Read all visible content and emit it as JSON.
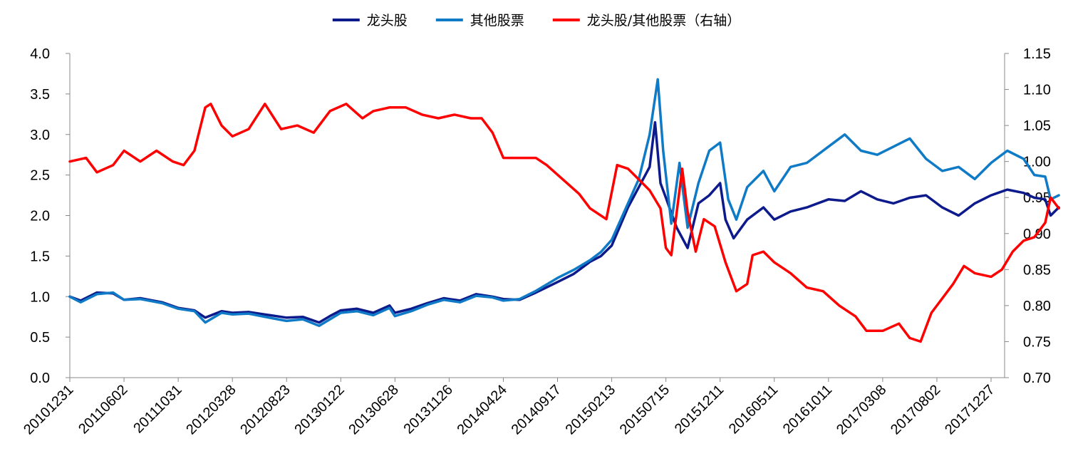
{
  "chart_data": {
    "type": "line",
    "legend_position": "top-center",
    "grid": false,
    "x_tick_labels": [
      "20101231",
      "20110602",
      "20111031",
      "20120328",
      "20120823",
      "20130122",
      "20130628",
      "20131126",
      "20140424",
      "20140917",
      "20150213",
      "20150715",
      "20151211",
      "20160511",
      "20161011",
      "20170308",
      "20170802",
      "20171227"
    ],
    "y_left": {
      "min": 0.0,
      "max": 4.0,
      "step": 0.5,
      "tick_labels": [
        "0.0",
        "0.5",
        "1.0",
        "1.5",
        "2.0",
        "2.5",
        "3.0",
        "3.5",
        "4.0"
      ]
    },
    "y_right": {
      "min": 0.7,
      "max": 1.15,
      "step": 0.05,
      "tick_labels": [
        "0.70",
        "0.75",
        "0.80",
        "0.85",
        "0.90",
        "0.95",
        "1.00",
        "1.05",
        "1.10",
        "1.15"
      ]
    },
    "series": [
      {
        "name": "龙头股",
        "axis": "left",
        "color": "#0d1a8c",
        "points": [
          [
            0,
            1.0
          ],
          [
            0.2,
            0.95
          ],
          [
            0.5,
            1.05
          ],
          [
            0.8,
            1.04
          ],
          [
            1.0,
            0.96
          ],
          [
            1.3,
            0.98
          ],
          [
            1.7,
            0.93
          ],
          [
            2.0,
            0.86
          ],
          [
            2.3,
            0.83
          ],
          [
            2.5,
            0.74
          ],
          [
            2.8,
            0.82
          ],
          [
            3.0,
            0.8
          ],
          [
            3.3,
            0.81
          ],
          [
            3.6,
            0.78
          ],
          [
            4.0,
            0.74
          ],
          [
            4.3,
            0.75
          ],
          [
            4.6,
            0.68
          ],
          [
            4.8,
            0.76
          ],
          [
            5.0,
            0.83
          ],
          [
            5.3,
            0.85
          ],
          [
            5.6,
            0.8
          ],
          [
            5.9,
            0.89
          ],
          [
            6.0,
            0.8
          ],
          [
            6.3,
            0.85
          ],
          [
            6.6,
            0.92
          ],
          [
            6.9,
            0.98
          ],
          [
            7.2,
            0.95
          ],
          [
            7.5,
            1.03
          ],
          [
            7.8,
            1.0
          ],
          [
            8.0,
            0.97
          ],
          [
            8.3,
            0.96
          ],
          [
            8.6,
            1.05
          ],
          [
            9.0,
            1.18
          ],
          [
            9.3,
            1.28
          ],
          [
            9.6,
            1.43
          ],
          [
            9.8,
            1.5
          ],
          [
            10.0,
            1.63
          ],
          [
            10.3,
            2.1
          ],
          [
            10.5,
            2.35
          ],
          [
            10.7,
            2.6
          ],
          [
            10.8,
            3.15
          ],
          [
            10.9,
            2.4
          ],
          [
            11.0,
            2.22
          ],
          [
            11.2,
            1.85
          ],
          [
            11.4,
            1.6
          ],
          [
            11.6,
            2.15
          ],
          [
            11.8,
            2.25
          ],
          [
            12.0,
            2.4
          ],
          [
            12.1,
            1.95
          ],
          [
            12.25,
            1.72
          ],
          [
            12.5,
            1.95
          ],
          [
            12.8,
            2.1
          ],
          [
            13.0,
            1.95
          ],
          [
            13.3,
            2.05
          ],
          [
            13.6,
            2.1
          ],
          [
            14.0,
            2.2
          ],
          [
            14.3,
            2.18
          ],
          [
            14.6,
            2.3
          ],
          [
            14.9,
            2.2
          ],
          [
            15.2,
            2.15
          ],
          [
            15.5,
            2.22
          ],
          [
            15.8,
            2.25
          ],
          [
            16.1,
            2.1
          ],
          [
            16.4,
            2.0
          ],
          [
            16.7,
            2.15
          ],
          [
            17.0,
            2.25
          ],
          [
            17.3,
            2.32
          ],
          [
            17.6,
            2.28
          ],
          [
            17.8,
            2.22
          ],
          [
            18.0,
            2.2
          ],
          [
            18.1,
            2.0
          ],
          [
            18.25,
            2.1
          ]
        ]
      },
      {
        "name": "其他股票",
        "axis": "left",
        "color": "#0f7ac6",
        "points": [
          [
            0,
            1.0
          ],
          [
            0.2,
            0.93
          ],
          [
            0.5,
            1.03
          ],
          [
            0.8,
            1.05
          ],
          [
            1.0,
            0.96
          ],
          [
            1.3,
            0.97
          ],
          [
            1.7,
            0.92
          ],
          [
            2.0,
            0.85
          ],
          [
            2.3,
            0.82
          ],
          [
            2.5,
            0.68
          ],
          [
            2.8,
            0.8
          ],
          [
            3.0,
            0.78
          ],
          [
            3.3,
            0.79
          ],
          [
            3.6,
            0.75
          ],
          [
            4.0,
            0.7
          ],
          [
            4.3,
            0.72
          ],
          [
            4.6,
            0.64
          ],
          [
            4.8,
            0.72
          ],
          [
            5.0,
            0.8
          ],
          [
            5.3,
            0.82
          ],
          [
            5.6,
            0.77
          ],
          [
            5.9,
            0.86
          ],
          [
            6.0,
            0.76
          ],
          [
            6.3,
            0.82
          ],
          [
            6.6,
            0.9
          ],
          [
            6.9,
            0.96
          ],
          [
            7.2,
            0.93
          ],
          [
            7.5,
            1.01
          ],
          [
            7.8,
            0.99
          ],
          [
            8.0,
            0.95
          ],
          [
            8.3,
            0.97
          ],
          [
            8.6,
            1.07
          ],
          [
            9.0,
            1.23
          ],
          [
            9.3,
            1.33
          ],
          [
            9.6,
            1.45
          ],
          [
            9.8,
            1.55
          ],
          [
            10.0,
            1.7
          ],
          [
            10.3,
            2.15
          ],
          [
            10.5,
            2.45
          ],
          [
            10.7,
            3.0
          ],
          [
            10.85,
            3.68
          ],
          [
            10.95,
            2.8
          ],
          [
            11.1,
            1.9
          ],
          [
            11.25,
            2.65
          ],
          [
            11.4,
            1.85
          ],
          [
            11.6,
            2.4
          ],
          [
            11.8,
            2.8
          ],
          [
            12.0,
            2.9
          ],
          [
            12.15,
            2.2
          ],
          [
            12.3,
            1.95
          ],
          [
            12.5,
            2.35
          ],
          [
            12.8,
            2.55
          ],
          [
            13.0,
            2.3
          ],
          [
            13.3,
            2.6
          ],
          [
            13.6,
            2.65
          ],
          [
            14.0,
            2.85
          ],
          [
            14.3,
            3.0
          ],
          [
            14.6,
            2.8
          ],
          [
            14.9,
            2.75
          ],
          [
            15.2,
            2.85
          ],
          [
            15.5,
            2.95
          ],
          [
            15.8,
            2.7
          ],
          [
            16.1,
            2.55
          ],
          [
            16.4,
            2.6
          ],
          [
            16.7,
            2.45
          ],
          [
            17.0,
            2.65
          ],
          [
            17.3,
            2.8
          ],
          [
            17.6,
            2.7
          ],
          [
            17.8,
            2.5
          ],
          [
            18.0,
            2.48
          ],
          [
            18.1,
            2.2
          ],
          [
            18.25,
            2.25
          ]
        ]
      },
      {
        "name": "龙头股/其他股票（右轴）",
        "axis": "right",
        "color": "#ff0000",
        "points": [
          [
            0,
            1.0
          ],
          [
            0.3,
            1.005
          ],
          [
            0.5,
            0.985
          ],
          [
            0.8,
            0.995
          ],
          [
            1.0,
            1.015
          ],
          [
            1.3,
            1.0
          ],
          [
            1.6,
            1.015
          ],
          [
            1.9,
            1.0
          ],
          [
            2.1,
            0.995
          ],
          [
            2.3,
            1.015
          ],
          [
            2.5,
            1.075
          ],
          [
            2.6,
            1.08
          ],
          [
            2.8,
            1.05
          ],
          [
            3.0,
            1.035
          ],
          [
            3.3,
            1.045
          ],
          [
            3.6,
            1.08
          ],
          [
            3.9,
            1.045
          ],
          [
            4.2,
            1.05
          ],
          [
            4.5,
            1.04
          ],
          [
            4.8,
            1.07
          ],
          [
            5.1,
            1.08
          ],
          [
            5.4,
            1.06
          ],
          [
            5.6,
            1.07
          ],
          [
            5.9,
            1.075
          ],
          [
            6.2,
            1.075
          ],
          [
            6.5,
            1.065
          ],
          [
            6.8,
            1.06
          ],
          [
            7.1,
            1.065
          ],
          [
            7.4,
            1.06
          ],
          [
            7.6,
            1.06
          ],
          [
            7.8,
            1.04
          ],
          [
            8.0,
            1.005
          ],
          [
            8.3,
            1.005
          ],
          [
            8.6,
            1.005
          ],
          [
            8.8,
            0.995
          ],
          [
            9.1,
            0.975
          ],
          [
            9.4,
            0.955
          ],
          [
            9.6,
            0.935
          ],
          [
            9.9,
            0.92
          ],
          [
            10.1,
            0.995
          ],
          [
            10.3,
            0.99
          ],
          [
            10.5,
            0.975
          ],
          [
            10.7,
            0.96
          ],
          [
            10.9,
            0.935
          ],
          [
            11.0,
            0.88
          ],
          [
            11.1,
            0.87
          ],
          [
            11.3,
            0.99
          ],
          [
            11.4,
            0.93
          ],
          [
            11.55,
            0.875
          ],
          [
            11.7,
            0.92
          ],
          [
            11.9,
            0.91
          ],
          [
            12.1,
            0.86
          ],
          [
            12.3,
            0.82
          ],
          [
            12.5,
            0.83
          ],
          [
            12.6,
            0.87
          ],
          [
            12.8,
            0.875
          ],
          [
            13.0,
            0.86
          ],
          [
            13.3,
            0.845
          ],
          [
            13.6,
            0.825
          ],
          [
            13.9,
            0.82
          ],
          [
            14.2,
            0.8
          ],
          [
            14.5,
            0.785
          ],
          [
            14.7,
            0.765
          ],
          [
            15.0,
            0.765
          ],
          [
            15.3,
            0.775
          ],
          [
            15.5,
            0.755
          ],
          [
            15.7,
            0.75
          ],
          [
            15.9,
            0.79
          ],
          [
            16.1,
            0.81
          ],
          [
            16.3,
            0.83
          ],
          [
            16.5,
            0.855
          ],
          [
            16.7,
            0.845
          ],
          [
            17.0,
            0.84
          ],
          [
            17.2,
            0.85
          ],
          [
            17.4,
            0.875
          ],
          [
            17.6,
            0.89
          ],
          [
            17.8,
            0.895
          ],
          [
            17.9,
            0.905
          ],
          [
            18.0,
            0.915
          ],
          [
            18.1,
            0.95
          ],
          [
            18.25,
            0.935
          ]
        ]
      }
    ]
  }
}
